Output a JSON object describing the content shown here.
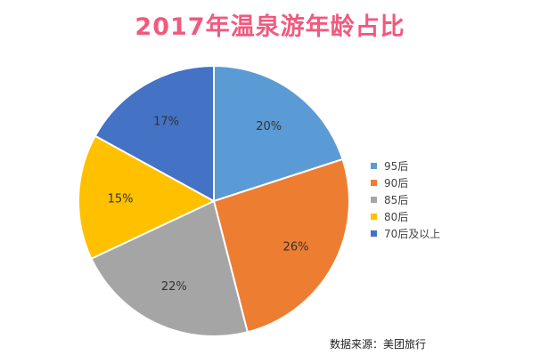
{
  "chart_data": {
    "type": "pie",
    "title": "2017年温泉游年龄占比",
    "categories": [
      "95后",
      "90后",
      "85后",
      "80后",
      "70后及以上"
    ],
    "values": [
      20,
      26,
      22,
      15,
      17
    ],
    "labels": [
      "20%",
      "26%",
      "22%",
      "15%",
      "17%"
    ],
    "colors": [
      "#5b9bd5",
      "#ed7d31",
      "#a5a5a5",
      "#ffc000",
      "#4472c4"
    ],
    "legend_position": "right"
  },
  "source": "数据来源：美团旅行"
}
